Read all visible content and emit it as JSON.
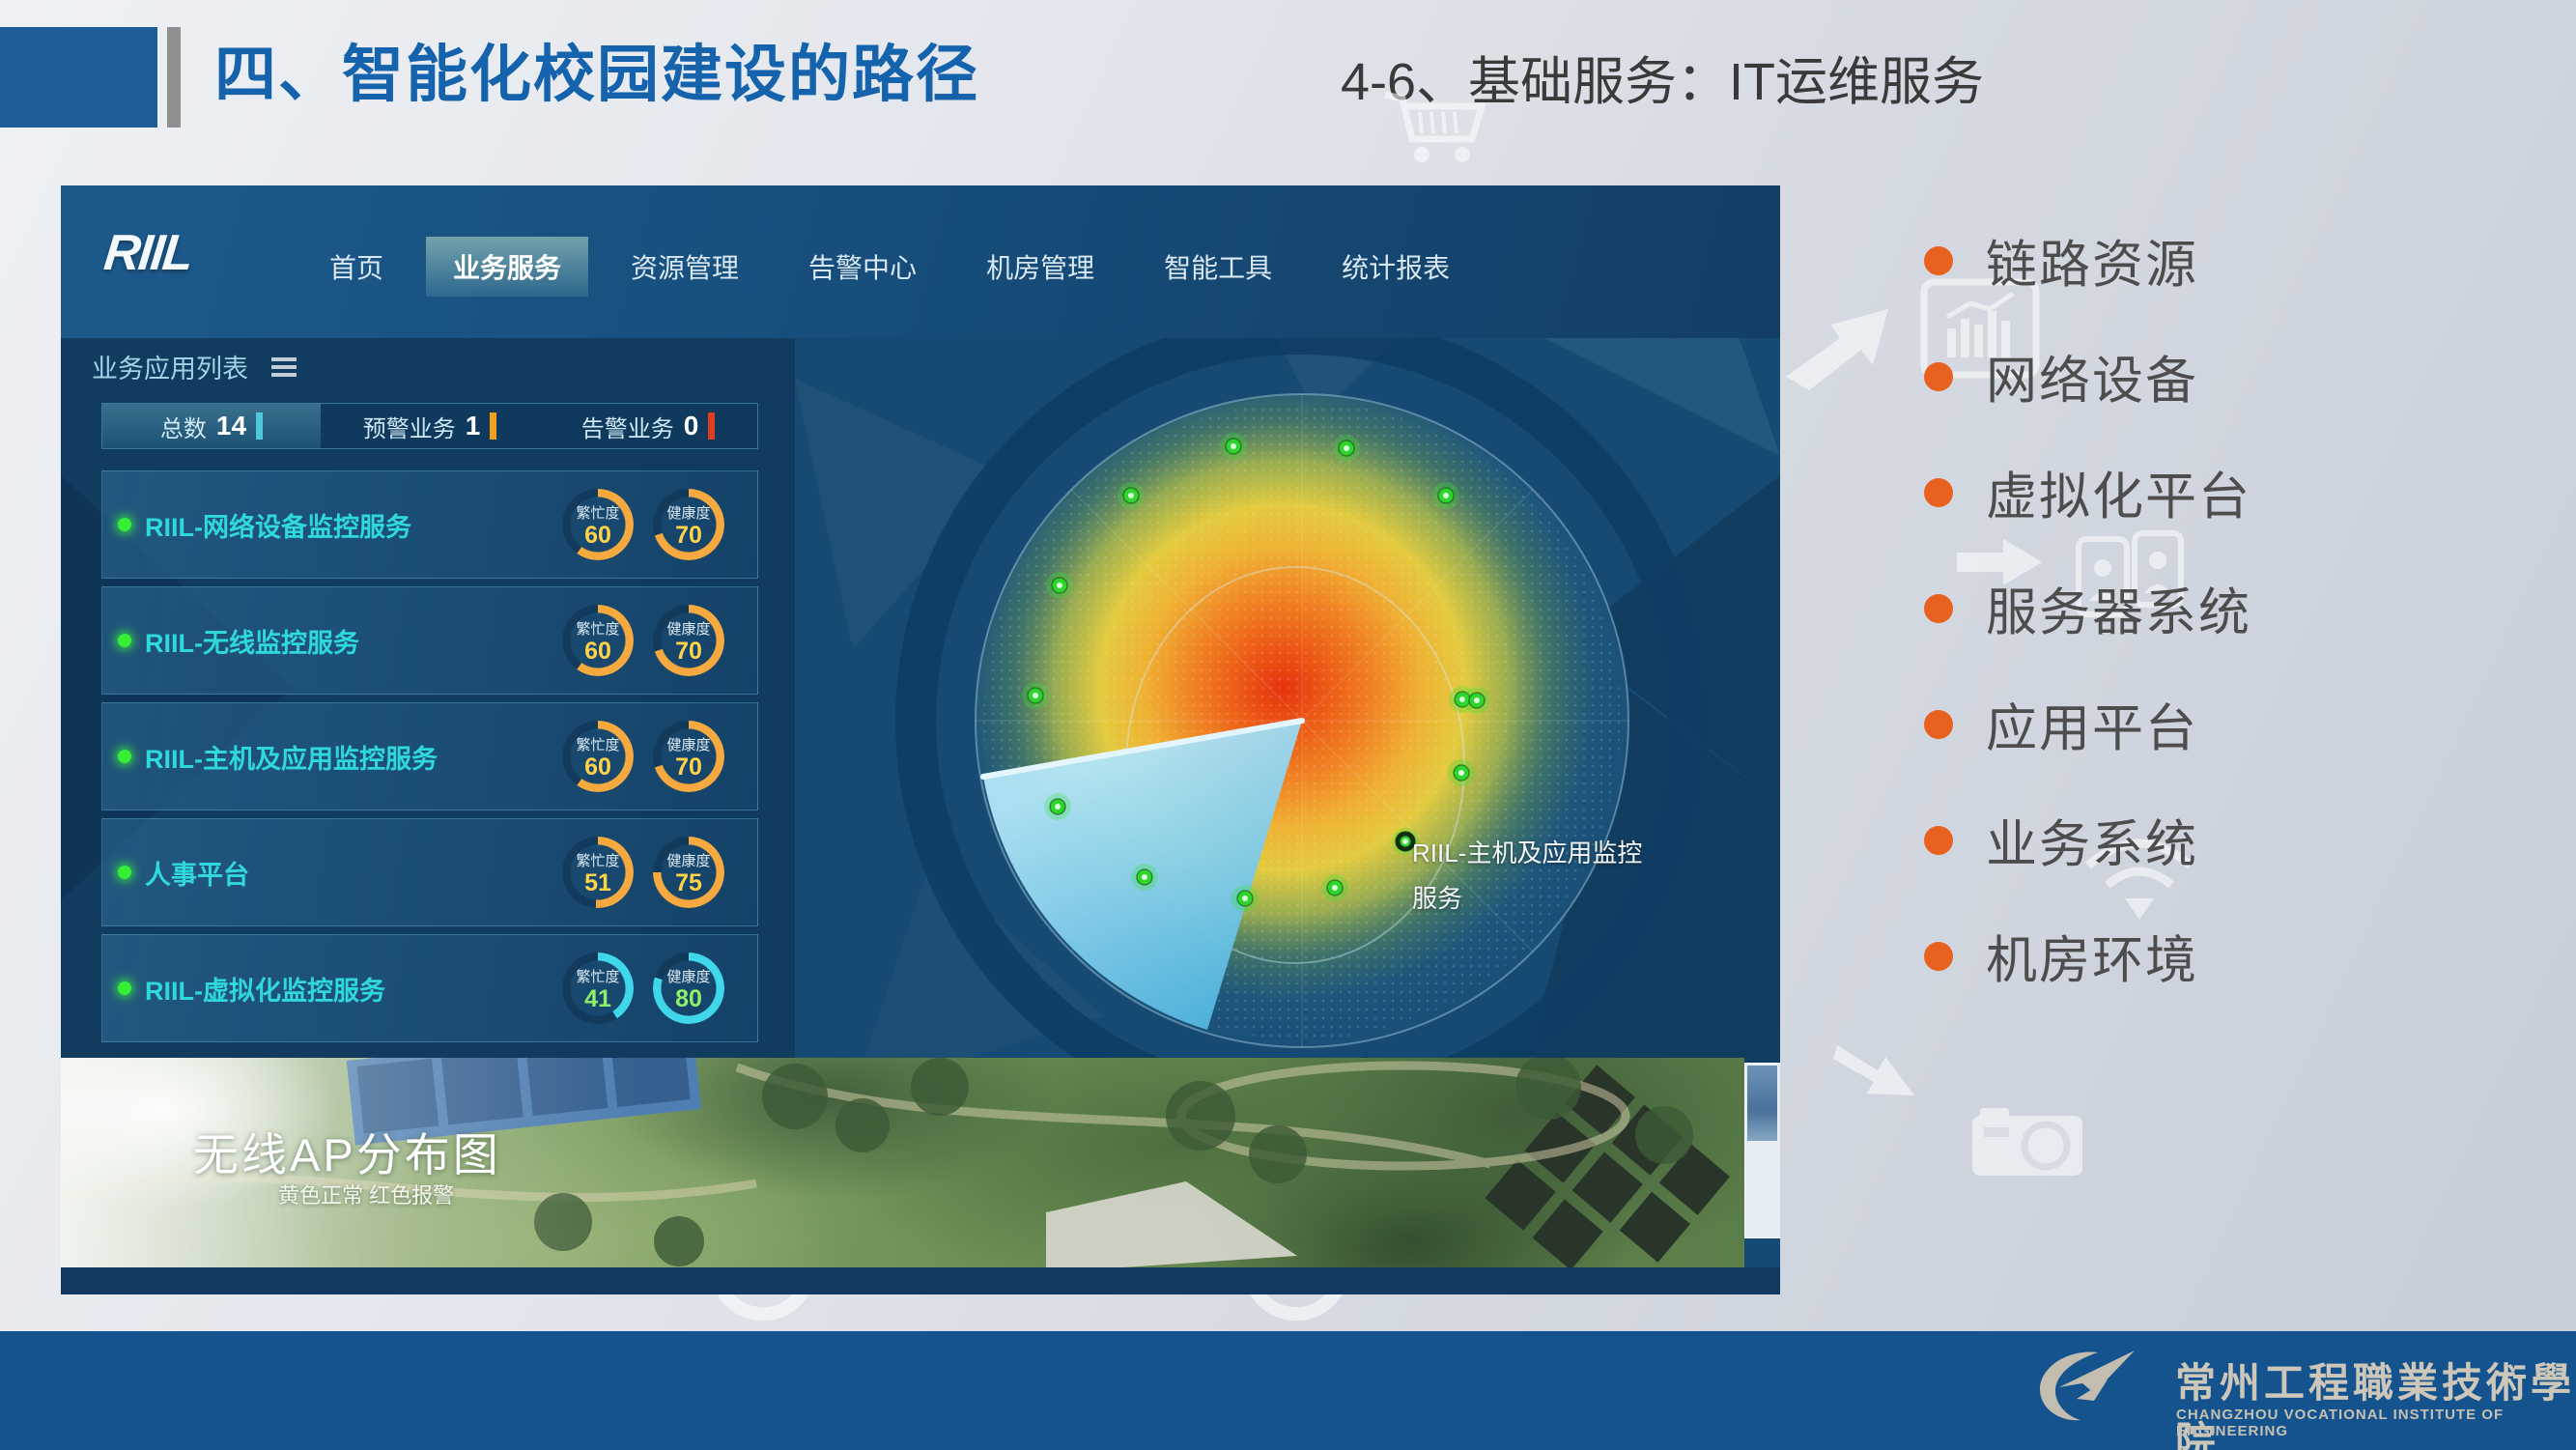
{
  "slide": {
    "title": "四、智能化校园建设的路径",
    "subtitle": "4-6、基础服务：IT运维服务"
  },
  "bullets": [
    {
      "text": "链路资源"
    },
    {
      "text": "网络设备"
    },
    {
      "text": "虚拟化平台"
    },
    {
      "text": "服务器系统"
    },
    {
      "text": "应用平台"
    },
    {
      "text": "业务系统"
    },
    {
      "text": "机房环境"
    }
  ],
  "dashboard": {
    "logo": "RIIL",
    "nav": {
      "items": [
        {
          "label": "首页",
          "active": false
        },
        {
          "label": "业务服务",
          "active": true
        },
        {
          "label": "资源管理",
          "active": false
        },
        {
          "label": "告警中心",
          "active": false
        },
        {
          "label": "机房管理",
          "active": false
        },
        {
          "label": "智能工具",
          "active": false
        },
        {
          "label": "统计报表",
          "active": false
        }
      ]
    },
    "panel": {
      "title": "业务应用列表",
      "stats": [
        {
          "label": "总数",
          "value": "14",
          "color": "#4fc8dd"
        },
        {
          "label": "预警业务",
          "value": "1",
          "color": "#f09f1f"
        },
        {
          "label": "告警业务",
          "value": "0",
          "color": "#e03c20"
        }
      ],
      "gauge_labels": {
        "busy": "繁忙度",
        "health": "健康度"
      },
      "services": [
        {
          "name": "RIIL-网络设备监控服务",
          "busy": 60,
          "health": 70,
          "accent": "#f5a93e",
          "value_color": "#ffd24a"
        },
        {
          "name": "RIIL-无线监控服务",
          "busy": 60,
          "health": 70,
          "accent": "#f5a93e",
          "value_color": "#ffd24a"
        },
        {
          "name": "RIIL-主机及应用监控服务",
          "busy": 60,
          "health": 70,
          "accent": "#f5a93e",
          "value_color": "#ffd24a"
        },
        {
          "name": "人事平台",
          "busy": 51,
          "health": 75,
          "accent": "#f5a93e",
          "value_color": "#ffd24a"
        },
        {
          "name": "RIIL-虚拟化监控服务",
          "busy": 41,
          "health": 80,
          "accent": "#3fd8ea",
          "value_color": "#8ef06a"
        }
      ]
    },
    "radar": {
      "label_line1": "RIIL-主机及应用监控",
      "label_line2": "服务"
    },
    "photo": {
      "title": "无线AP分布图",
      "legend": "黄色正常 红色报警"
    }
  },
  "footer": {
    "school_zh": "常州工程職業技術學院",
    "school_en": "CHANGZHOU VOCATIONAL INSTITUTE OF ENGINEERING",
    "bar_color": "#15538e"
  },
  "icons": {
    "menu": "hamburger-icon",
    "cart": "cart-icon",
    "chart": "bar-chart-icon",
    "arrow_up_right": "arrow-up-right-icon",
    "arrow_right": "arrow-right-icon",
    "contacts": "contacts-icon",
    "wifi": "wifi-icon",
    "arrow_down_right": "arrow-down-right-icon",
    "camera": "camera-icon",
    "logo_swoosh": "school-logo-swoosh-icon",
    "status_dot": "status-dot-icon"
  },
  "colors": {
    "accent_blue": "#1563ac",
    "bullet_orange": "#e8611f",
    "footer_bar": "#15538e",
    "gauge_orange": "#f5a93e",
    "gauge_cyan": "#3fd8ea"
  }
}
